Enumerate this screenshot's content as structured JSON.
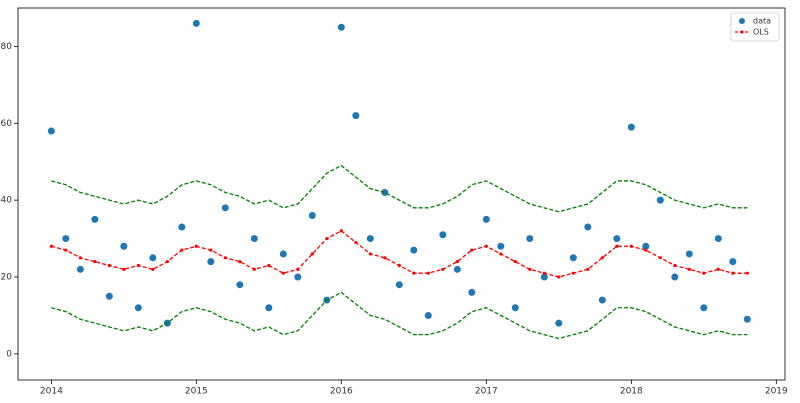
{
  "chart_data": {
    "type": "scatter",
    "x": [
      2014.0,
      2014.1,
      2014.2,
      2014.3,
      2014.4,
      2014.5,
      2014.6,
      2014.7,
      2014.8,
      2014.9,
      2015.0,
      2015.1,
      2015.2,
      2015.3,
      2015.4,
      2015.5,
      2015.6,
      2015.7,
      2015.8,
      2015.9,
      2016.0,
      2016.1,
      2016.2,
      2016.3,
      2016.4,
      2016.5,
      2016.6,
      2016.7,
      2016.8,
      2016.9,
      2017.0,
      2017.1,
      2017.2,
      2017.3,
      2017.4,
      2017.5,
      2017.6,
      2017.7,
      2017.8,
      2017.9,
      2018.0,
      2018.1,
      2018.2,
      2018.3,
      2018.4,
      2018.5,
      2018.6,
      2018.7,
      2018.8
    ],
    "series": [
      {
        "name": "data",
        "color": "#1f77b4",
        "mode": "markers",
        "values": [
          58,
          30,
          22,
          35,
          15,
          28,
          12,
          25,
          8,
          33,
          86,
          24,
          38,
          18,
          30,
          12,
          26,
          20,
          36,
          14,
          85,
          62,
          30,
          42,
          18,
          27,
          10,
          31,
          22,
          16,
          35,
          28,
          12,
          30,
          20,
          8,
          25,
          33,
          14,
          30,
          59,
          28,
          40,
          20,
          26,
          12,
          30,
          24,
          9
        ]
      },
      {
        "color": "#008000",
        "mode": "lines",
        "dashed": true,
        "values": [
          45,
          44,
          42,
          41,
          40,
          39,
          40,
          39,
          41,
          44,
          45,
          44,
          42,
          41,
          39,
          40,
          38,
          39,
          43,
          47,
          49,
          46,
          43,
          42,
          40,
          38,
          38,
          39,
          41,
          44,
          45,
          43,
          41,
          39,
          38,
          37,
          38,
          39,
          42,
          45,
          45,
          44,
          42,
          40,
          39,
          38,
          39,
          38,
          38
        ]
      },
      {
        "color": "#008000",
        "mode": "lines",
        "dashed": true,
        "values": [
          12,
          11,
          9,
          8,
          7,
          6,
          7,
          6,
          8,
          11,
          12,
          11,
          9,
          8,
          6,
          7,
          5,
          6,
          10,
          14,
          16,
          13,
          10,
          9,
          7,
          5,
          5,
          6,
          8,
          11,
          12,
          10,
          8,
          6,
          5,
          4,
          5,
          6,
          9,
          12,
          12,
          11,
          9,
          7,
          6,
          5,
          6,
          5,
          5
        ]
      },
      {
        "name": "OLS",
        "color": "#ff0000",
        "mode": "lines+markers",
        "dashed": true,
        "values": [
          28,
          27,
          25,
          24,
          23,
          22,
          23,
          22,
          24,
          27,
          28,
          27,
          25,
          24,
          22,
          23,
          21,
          22,
          26,
          30,
          32,
          29,
          26,
          25,
          23,
          21,
          21,
          22,
          24,
          27,
          28,
          26,
          24,
          22,
          21,
          20,
          21,
          22,
          25,
          28,
          28,
          27,
          25,
          23,
          22,
          21,
          22,
          21,
          21
        ]
      }
    ],
    "xlim": [
      2013.77,
      2019.06
    ],
    "ylim": [
      -6.8,
      90
    ],
    "xticks": [
      2014,
      2015,
      2016,
      2017,
      2018,
      2019
    ],
    "yticks": [
      0,
      20,
      40,
      60,
      80
    ],
    "legend": "upper right"
  }
}
